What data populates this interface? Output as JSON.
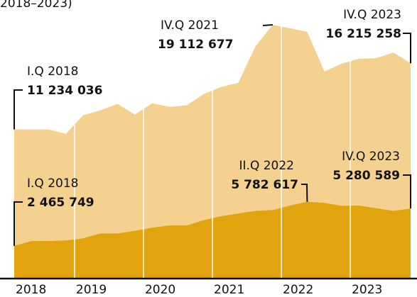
{
  "chart_data": {
    "type": "area",
    "subtitle": "2018–2023)",
    "year_labels": [
      "2018",
      "2019",
      "2020",
      "2021",
      "2022",
      "2023"
    ],
    "series": [
      {
        "color": "#f5d18f",
        "values": [
          11234036,
          11230000,
          11230000,
          10900000,
          12300000,
          12670000,
          13150000,
          12350000,
          13200000,
          12940000,
          13040000,
          13900000,
          14430000,
          14750000,
          17500000,
          19112677,
          18850000,
          18580000,
          15600000,
          16180000,
          16560000,
          16600000,
          17030000,
          16215258
        ],
        "point_labels": [
          "I.Q 2018",
          null,
          null,
          null,
          null,
          null,
          null,
          null,
          null,
          null,
          null,
          null,
          null,
          null,
          null,
          "IV.Q 2021",
          null,
          null,
          null,
          null,
          null,
          null,
          null,
          "IV.Q 2023"
        ],
        "value_labels": [
          "11 234 036",
          null,
          null,
          null,
          null,
          null,
          null,
          null,
          null,
          null,
          null,
          null,
          null,
          null,
          null,
          "19 112 677",
          null,
          null,
          null,
          null,
          null,
          null,
          null,
          "16 215 258"
        ]
      },
      {
        "color": "#e1a30e",
        "values": [
          2465749,
          2820000,
          2830000,
          2870000,
          3030000,
          3400000,
          3400000,
          3600000,
          3830000,
          4000000,
          4000000,
          4400000,
          4700000,
          4900000,
          5100000,
          5160000,
          5500000,
          5782617,
          5700000,
          5480000,
          5500000,
          5300000,
          5100000,
          5280589
        ],
        "point_labels": [
          "I.Q 2018",
          null,
          null,
          null,
          null,
          null,
          null,
          null,
          null,
          null,
          null,
          null,
          null,
          null,
          null,
          null,
          null,
          "II.Q 2022",
          null,
          null,
          null,
          null,
          null,
          "IV.Q 2023"
        ],
        "value_labels": [
          "2 465 749",
          null,
          null,
          null,
          null,
          null,
          null,
          null,
          null,
          null,
          null,
          null,
          null,
          null,
          null,
          null,
          null,
          "5 782 617",
          null,
          null,
          null,
          null,
          null,
          "5 280 589"
        ]
      }
    ]
  }
}
